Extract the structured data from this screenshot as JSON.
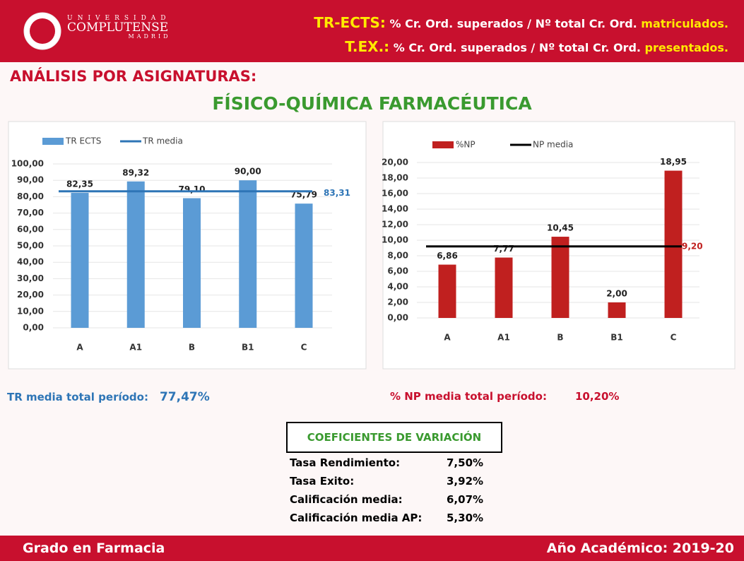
{
  "logo": {
    "line1": "UNIVERSIDAD",
    "line2": "COMPLUTENSE",
    "line3": "MADRID"
  },
  "header": {
    "line1": {
      "key": "TR-ECTS:",
      "text": "% Cr. Ord. superados / Nº total Cr. Ord.",
      "highlight": "matriculados."
    },
    "line2": {
      "key": "T.EX.:",
      "text": "% Cr. Ord. superados / Nº total Cr. Ord.",
      "highlight": "presentados."
    }
  },
  "section_title": "ANÁLISIS POR ASIGNATURAS:",
  "subject": "FÍSICO-QUÍMICA FARMACÉUTICA",
  "chart_data": [
    {
      "type": "bar",
      "categories": [
        "A",
        "A1",
        "B",
        "B1",
        "C"
      ],
      "series": [
        {
          "name": "TR ECTS",
          "color": "#5b9bd5",
          "values": [
            82.35,
            89.32,
            79.1,
            90.0,
            75.79
          ],
          "value_labels": [
            "82,35",
            "89,32",
            "79,10",
            "90,00",
            "75,79"
          ]
        },
        {
          "name": "TR media",
          "color": "#2e75b6",
          "type": "line",
          "value": 83.31,
          "value_label": "83,31"
        }
      ],
      "ylim": [
        0,
        100
      ],
      "yticks": [
        {
          "value": 0,
          "label": "0,00"
        },
        {
          "value": 10,
          "label": "10,00"
        },
        {
          "value": 20,
          "label": "20,00"
        },
        {
          "value": 30,
          "label": "30,00"
        },
        {
          "value": 40,
          "label": "40,00"
        },
        {
          "value": 50,
          "label": "50,00"
        },
        {
          "value": 60,
          "label": "60,00"
        },
        {
          "value": 70,
          "label": "70,00"
        },
        {
          "value": 80,
          "label": "80,00"
        },
        {
          "value": 90,
          "label": "90,00"
        },
        {
          "value": 100,
          "label": "100,00"
        }
      ],
      "grid": true
    },
    {
      "type": "bar",
      "categories": [
        "A",
        "A1",
        "B",
        "B1",
        "C"
      ],
      "series": [
        {
          "name": "%NP",
          "color": "#c0201f",
          "values": [
            6.86,
            7.77,
            10.45,
            2.0,
            18.95
          ],
          "value_labels": [
            "6,86",
            "7,77",
            "10,45",
            "2,00",
            "18,95"
          ]
        },
        {
          "name": "NP media",
          "color": "#000000",
          "type": "line",
          "value": 9.2,
          "value_label": "9,20"
        }
      ],
      "ylim": [
        0,
        20
      ],
      "yticks": [
        {
          "value": 0,
          "label": "0,00"
        },
        {
          "value": 2,
          "label": "2,00"
        },
        {
          "value": 4,
          "label": "4,00"
        },
        {
          "value": 6,
          "label": "6,00"
        },
        {
          "value": 8,
          "label": "8,00"
        },
        {
          "value": 10,
          "label": "10,00"
        },
        {
          "value": 12,
          "label": "12,00"
        },
        {
          "value": 14,
          "label": "14,00"
        },
        {
          "value": 16,
          "label": "16,00"
        },
        {
          "value": 18,
          "label": "18,00"
        },
        {
          "value": 20,
          "label": "20,00"
        }
      ],
      "grid": true
    }
  ],
  "summary": {
    "tr_label": "TR media total período:",
    "tr_value": "77,47%",
    "np_label": "% NP media total período:",
    "np_value": "10,20%"
  },
  "table": {
    "title": "COEFICIENTES DE VARIACIÓN",
    "rows": [
      [
        "Tasa Rendimiento:",
        "7,50%"
      ],
      [
        "Tasa Exito:",
        "3,92%"
      ],
      [
        "Calificación media:",
        "6,07%"
      ],
      [
        "Calificación media AP:",
        "5,30%"
      ]
    ]
  },
  "footer": {
    "left": "Grado en Farmacia",
    "right": "Año Académico: 2019-20"
  }
}
